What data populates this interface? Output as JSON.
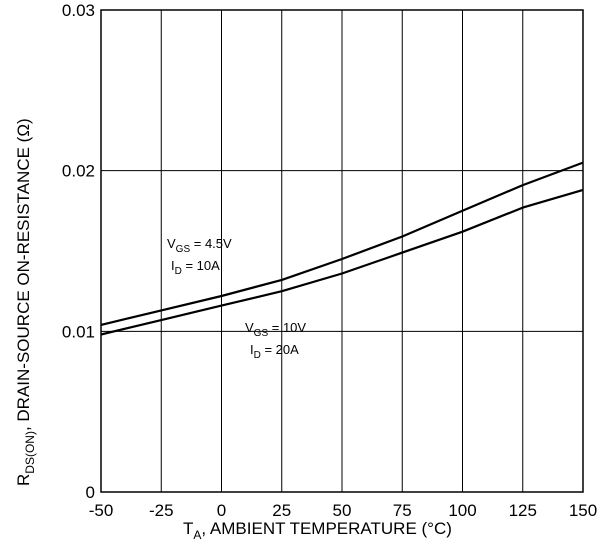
{
  "chart_data": {
    "type": "line",
    "xlabel": {
      "main": "T",
      "sub": "A",
      "rest": ", AMBIENT TEMPERATURE (°C)"
    },
    "ylabel": {
      "main": "R",
      "sub": "DS(ON)",
      "rest": ", DRAIN-SOURCE ON-RESISTANCE (Ω)"
    },
    "xlim": [
      -50,
      150
    ],
    "ylim": [
      0,
      0.03
    ],
    "x_ticks": [
      "-50",
      "-25",
      "0",
      "25",
      "50",
      "75",
      "100",
      "125",
      "150"
    ],
    "x_tick_values": [
      -50,
      -25,
      0,
      25,
      50,
      75,
      100,
      125,
      150
    ],
    "y_ticks": [
      "0",
      "0.01",
      "0.02",
      "0.03"
    ],
    "y_tick_values": [
      0,
      0.01,
      0.02,
      0.03
    ],
    "grid": true,
    "series": [
      {
        "annotation": [
          {
            "main": "V",
            "sub": "GS",
            "rest": " = 4.5V"
          },
          {
            "main": "I",
            "sub": "D",
            "rest": " = 10A"
          }
        ],
        "x": [
          -50,
          -25,
          0,
          25,
          50,
          75,
          100,
          125,
          150
        ],
        "y": [
          0.0104,
          0.0113,
          0.0122,
          0.0132,
          0.0145,
          0.0159,
          0.0175,
          0.0191,
          0.0205
        ]
      },
      {
        "annotation": [
          {
            "main": "V",
            "sub": "GS",
            "rest": " = 10V"
          },
          {
            "main": "I",
            "sub": "D",
            "rest": " = 20A"
          }
        ],
        "x": [
          -50,
          -25,
          0,
          25,
          50,
          75,
          100,
          125,
          150
        ],
        "y": [
          0.0098,
          0.0107,
          0.0116,
          0.0125,
          0.0136,
          0.0149,
          0.0162,
          0.0177,
          0.0188
        ]
      }
    ]
  }
}
